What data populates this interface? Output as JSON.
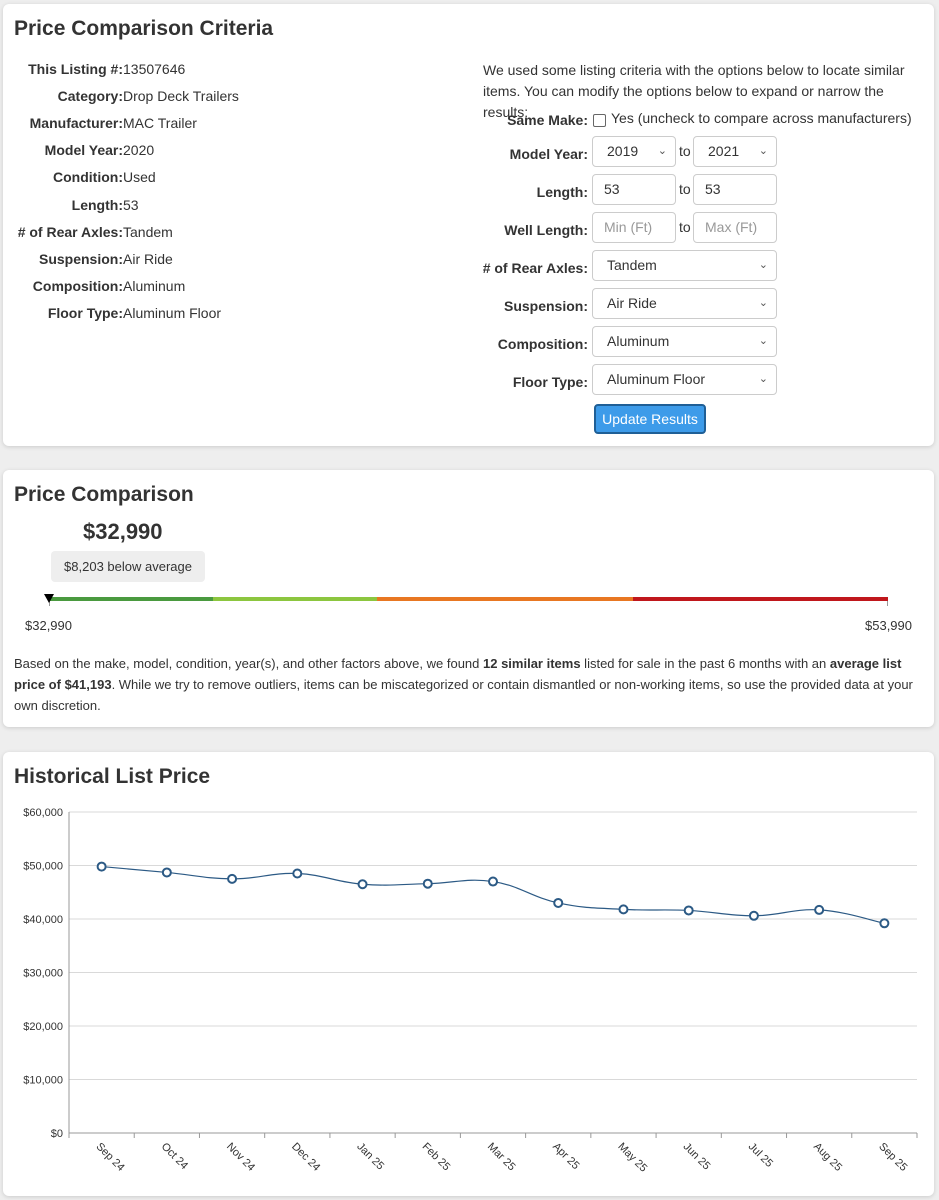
{
  "criteria": {
    "title": "Price Comparison Criteria",
    "specs": [
      {
        "label": "This Listing #:",
        "value": "13507646"
      },
      {
        "label": "Category:",
        "value": "Drop Deck Trailers"
      },
      {
        "label": "Manufacturer:",
        "value": "MAC Trailer"
      },
      {
        "label": "Model Year:",
        "value": "2020"
      },
      {
        "label": "Condition:",
        "value": "Used"
      },
      {
        "label": "Length:",
        "value": "53"
      },
      {
        "label": "# of Rear Axles:",
        "value": "Tandem"
      },
      {
        "label": "Suspension:",
        "value": "Air Ride"
      },
      {
        "label": "Composition:",
        "value": "Aluminum"
      },
      {
        "label": "Floor Type:",
        "value": "Aluminum Floor"
      }
    ],
    "intro": "We used some listing criteria with the options below to locate similar items. You can modify the options below to expand or narrow the results:",
    "same_make_label": "Same Make:",
    "same_make_text": "Yes (uncheck to compare across manufacturers)",
    "model_year_label": "Model Year:",
    "model_year_from": "2019",
    "model_year_to": "2021",
    "to_text": "to",
    "length_label": "Length:",
    "length_from": "53",
    "length_to": "53",
    "well_length_label": "Well Length:",
    "well_min_placeholder": "Min (Ft)",
    "well_max_placeholder": "Max (Ft)",
    "rear_axles_label": "# of Rear Axles:",
    "rear_axles_value": "Tandem",
    "suspension_label": "Suspension:",
    "suspension_value": "Air Ride",
    "composition_label": "Composition:",
    "composition_value": "Aluminum",
    "floor_type_label": "Floor Type:",
    "floor_type_value": "Aluminum Floor",
    "update_button": "Update Results"
  },
  "comparison": {
    "title": "Price Comparison",
    "price": "$32,990",
    "below_average": "$8,203 below average",
    "range_min": "$32,990",
    "range_max": "$53,990",
    "bar_colors": [
      "#4a9a3f",
      "#8cc63f",
      "#e87722",
      "#c0171c"
    ],
    "marker_fraction": 0,
    "desc_1": "Based on the make, model, condition, year(s), and other factors above, we found ",
    "desc_b1": "12 similar items",
    "desc_2": " listed for sale in the past 6 months with an ",
    "desc_b2": "average list price of $41,193",
    "desc_3": ". While we try to remove outliers, items can be miscategorized or contain dismantled or non-working items, so use the provided data at your own discretion."
  },
  "history": {
    "title": "Historical List Price"
  },
  "chart_data": {
    "type": "line",
    "title": "Historical List Price",
    "categories": [
      "Sep 24",
      "Oct 24",
      "Nov 24",
      "Dec 24",
      "Jan 25",
      "Feb 25",
      "Mar 25",
      "Apr 25",
      "May 25",
      "Jun 25",
      "Jul 25",
      "Aug 25",
      "Sep 25"
    ],
    "values": [
      49800,
      48700,
      47500,
      48500,
      46500,
      46600,
      47000,
      43000,
      41800,
      41600,
      40600,
      41700,
      39200
    ],
    "yticks": [
      "$0",
      "$10,000",
      "$20,000",
      "$30,000",
      "$40,000",
      "$50,000",
      "$60,000"
    ],
    "ylim": [
      0,
      60000
    ],
    "grid": true,
    "line_color": "#2c5a85",
    "xlabel": "",
    "ylabel": ""
  }
}
